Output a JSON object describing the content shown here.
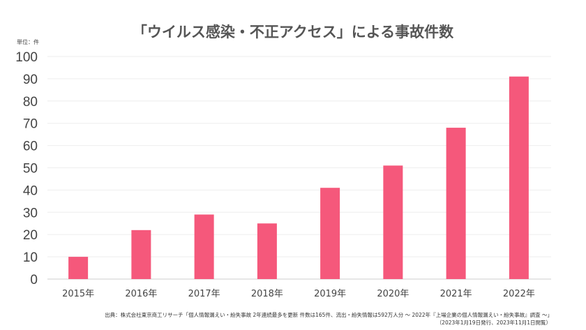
{
  "chart_data": {
    "type": "bar",
    "title": "「ウイルス感染・不正アクセス」による事故件数",
    "unit_label": "単位：件",
    "xlabel": "",
    "ylabel": "",
    "categories": [
      "2015年",
      "2016年",
      "2017年",
      "2018年",
      "2019年",
      "2020年",
      "2021年",
      "2022年"
    ],
    "values": [
      10,
      22,
      29,
      25,
      41,
      51,
      68,
      91
    ],
    "ylim": [
      0,
      100
    ],
    "yticks": [
      0,
      10,
      20,
      30,
      40,
      50,
      60,
      70,
      80,
      90,
      100
    ],
    "grid": true,
    "legend": "none",
    "bar_color": "#f5587b",
    "source_line1": "出典：株式会社東京商工リサーチ「個人情報漏えい・紛失事故 2年連続最多を更新 件数は165件、流出・紛失情報は592万人分 ～ 2022年『上場企業の個人情報漏えい・紛失事故』調査 ～」",
    "source_line2": "（2023年1月19日発行、2023年11月1日閲覧）"
  }
}
